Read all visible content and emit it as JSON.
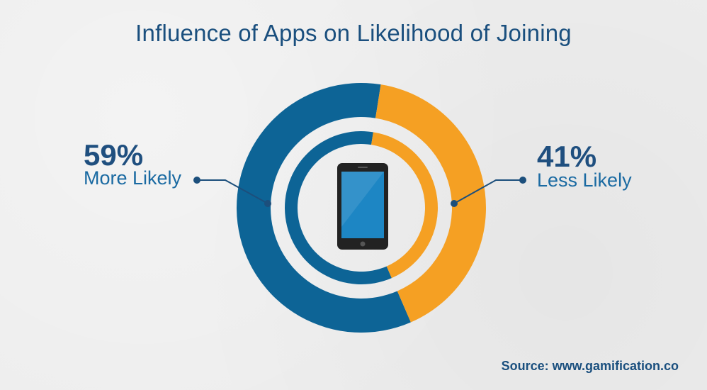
{
  "colors": {
    "background": "#ededed",
    "more_likely": "#0d6496",
    "less_likely": "#f5a023",
    "title": "#1a4f7e",
    "phone_body": "#222222",
    "phone_screen": "#1d86c4"
  },
  "icons": {
    "center": "smartphone-icon"
  },
  "chart_data": {
    "type": "pie",
    "variant": "donut",
    "title": "Influence of Apps on Likelihood of Joining",
    "slices": [
      {
        "label": "More Likely",
        "value": 59,
        "display": "59%",
        "color": "#0d6496"
      },
      {
        "label": "Less Likely",
        "value": 41,
        "display": "41%",
        "color": "#f5a023"
      }
    ]
  },
  "source": "Source: www.gamification.co"
}
